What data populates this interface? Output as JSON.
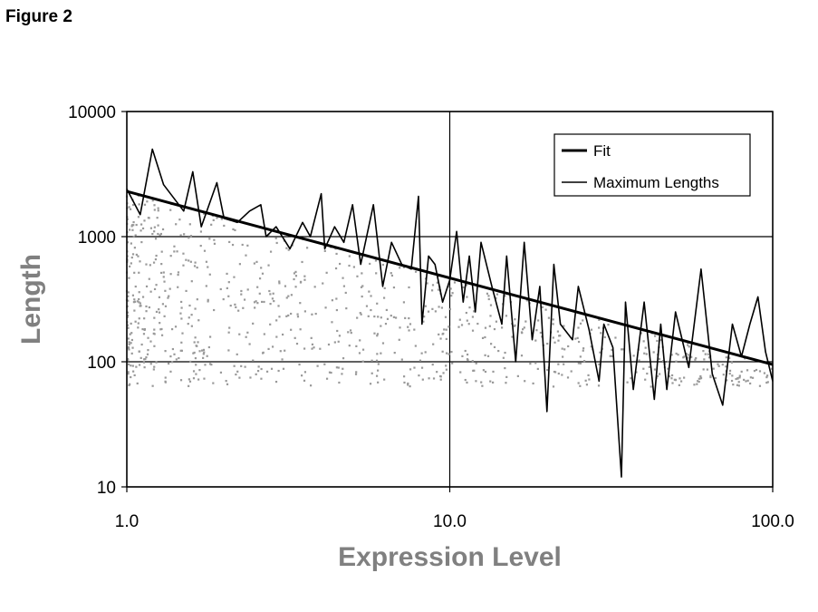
{
  "figure_label": "Figure 2",
  "chart_data": {
    "type": "scatter",
    "xlabel": "Expression Level",
    "ylabel": "Length",
    "xscale": "log",
    "yscale": "log",
    "xlim": [
      1,
      100
    ],
    "ylim": [
      10,
      10000
    ],
    "x_ticks": [
      "1.0",
      "10.0",
      "100.0"
    ],
    "y_ticks": [
      "10",
      "100",
      "1000",
      "10000"
    ],
    "grid": "major gridlines on both axes",
    "legend_position": "top-right",
    "series": [
      {
        "name": "Fit",
        "kind": "line",
        "color": "#000000",
        "x": [
          1,
          100
        ],
        "y": [
          2300,
          95
        ]
      },
      {
        "name": "Maximum Lengths",
        "kind": "line",
        "color": "#000000",
        "x": [
          1,
          1.1,
          1.2,
          1.3,
          1.5,
          1.6,
          1.7,
          1.9,
          2.0,
          2.2,
          2.4,
          2.6,
          2.7,
          2.9,
          3.2,
          3.5,
          3.7,
          4.0,
          4.1,
          4.4,
          4.7,
          5.0,
          5.3,
          5.8,
          6.2,
          6.6,
          7.1,
          7.6,
          8.0,
          8.2,
          8.6,
          9.0,
          9.5,
          10.0,
          10.5,
          11.0,
          11.5,
          12.0,
          12.5,
          13.5,
          14.5,
          15.0,
          16.0,
          17.0,
          18.0,
          19.0,
          20.0,
          21.0,
          22.0,
          24.0,
          25.0,
          27.0,
          29.0,
          30.0,
          32.0,
          34.0,
          35.0,
          37.0,
          40.0,
          43.0,
          45.0,
          47.0,
          50.0,
          55.0,
          60.0,
          65.0,
          70.0,
          75.0,
          80.0,
          85.0,
          90.0,
          95.0,
          100.0
        ],
        "y": [
          2400,
          1500,
          5000,
          2600,
          1600,
          3300,
          1200,
          2700,
          1400,
          1300,
          1600,
          1800,
          1000,
          1200,
          800,
          1300,
          1000,
          2200,
          800,
          1200,
          900,
          1800,
          600,
          1800,
          400,
          900,
          600,
          550,
          2100,
          200,
          700,
          600,
          300,
          450,
          1100,
          300,
          700,
          250,
          900,
          400,
          200,
          700,
          100,
          900,
          150,
          400,
          40,
          600,
          200,
          150,
          400,
          180,
          70,
          200,
          130,
          12,
          300,
          60,
          300,
          50,
          200,
          60,
          250,
          90,
          550,
          80,
          45,
          200,
          110,
          200,
          330,
          120,
          70
        ]
      },
      {
        "name": "",
        "kind": "scatter",
        "color": "#999999",
        "description_points_count": 900
      }
    ]
  }
}
